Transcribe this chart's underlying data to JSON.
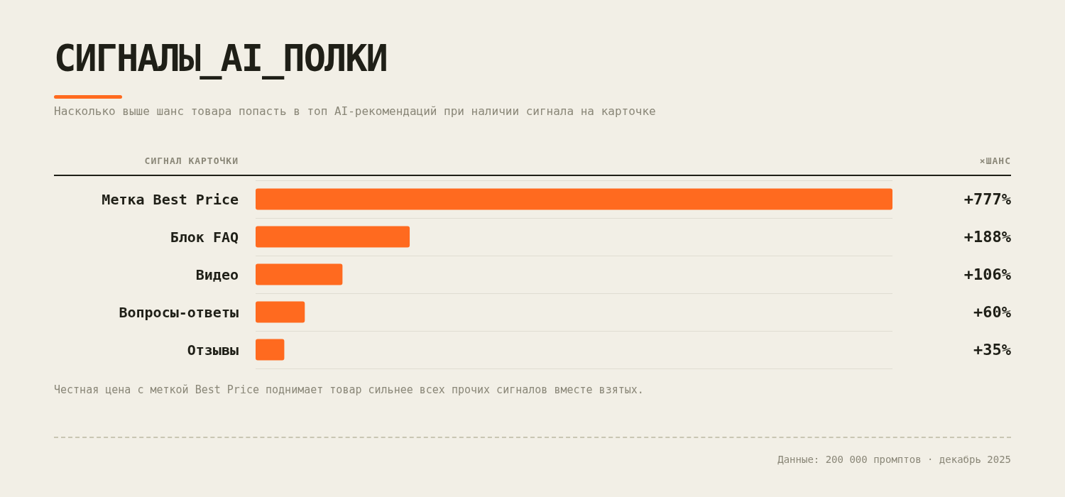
{
  "chart_data": {
    "type": "bar",
    "orientation": "horizontal",
    "title": "СИГНАЛЫ_AI_ПОЛКИ",
    "subtitle": "Насколько выше шанс товара попасть в топ AI-рекомендаций при наличии сигнала на карточке",
    "ylabel": "СИГНАЛ КАРТОЧКИ",
    "categories": [
      "Метка Best Price",
      "Блок FAQ",
      "Видео",
      "Вопросы-ответы",
      "Отзывы"
    ],
    "values": [
      777,
      188,
      106,
      60,
      35
    ],
    "value_labels": [
      "+777%",
      "+188%",
      "+106%",
      "+60%",
      "+35%"
    ],
    "color": "#ff6a1f",
    "grid": "y",
    "tick_labels": "y",
    "annotations": [
      "×ШАНС",
      "Честная цена с меткой Best Price поднимает товар сильнее всех прочих сигналов вместе взятых.",
      "Данные: 200 000 промптов · декабрь 2025"
    ]
  }
}
